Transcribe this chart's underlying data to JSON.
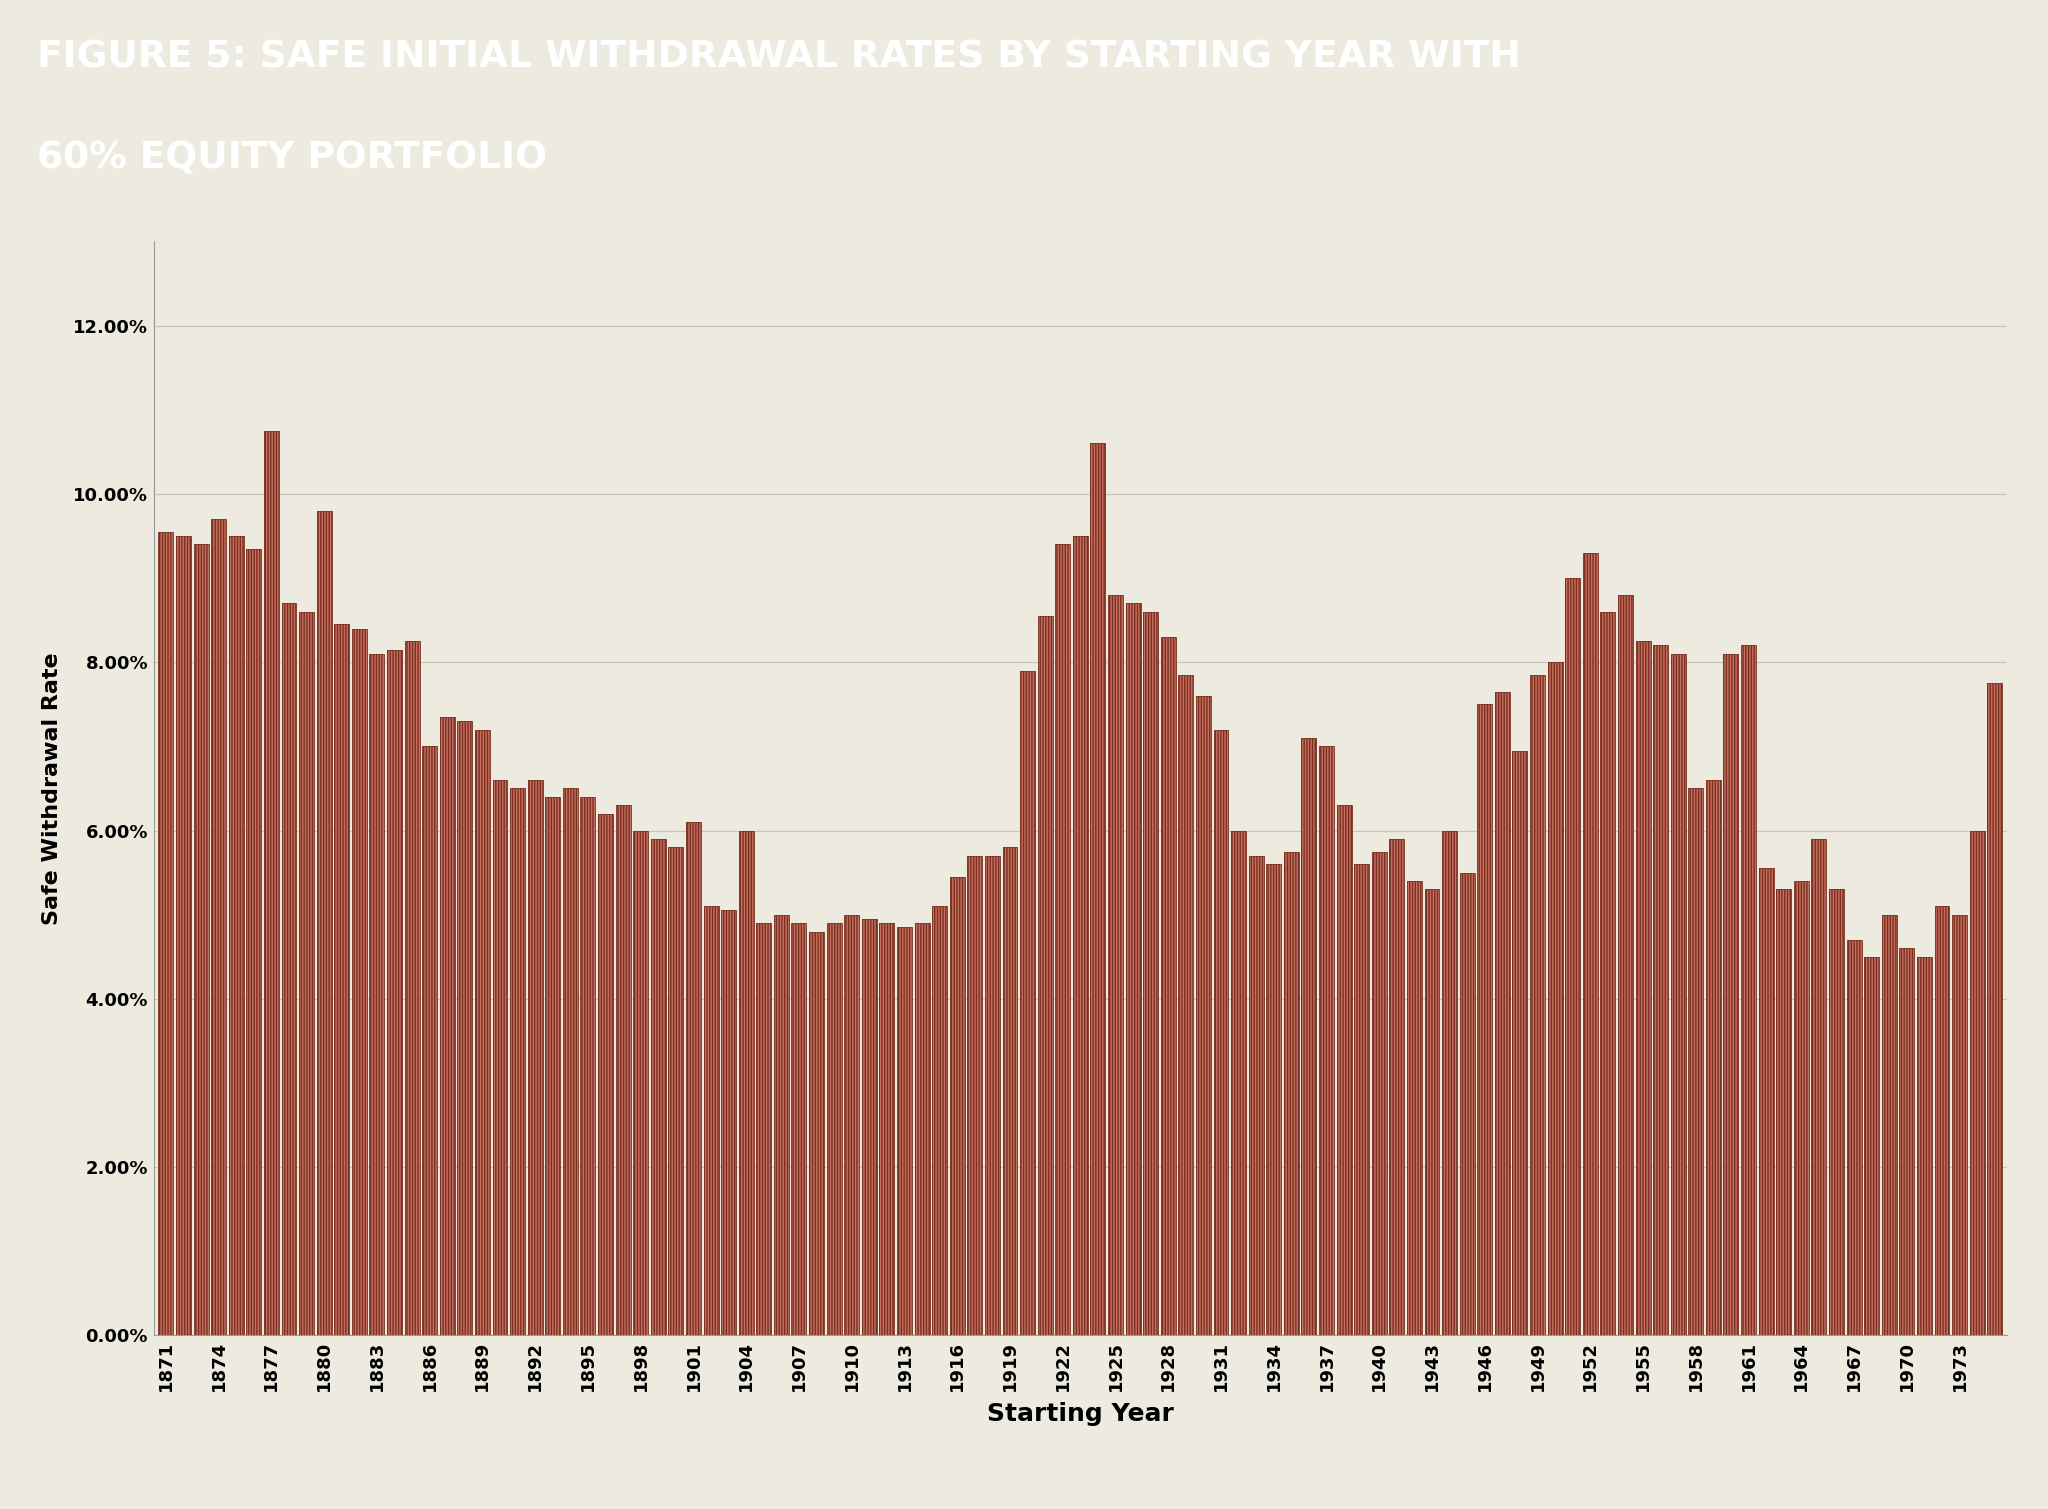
{
  "title_line1": "FIGURE 5: SAFE INITIAL WITHDRAWAL RATES BY STARTING YEAR WITH",
  "title_line2": "60% EQUITY PORTFOLIO",
  "xlabel": "Starting Year",
  "ylabel": "Safe Withdrawal Rate",
  "background_color": "#edeae0",
  "title_bg_color": "#111111",
  "title_text_color": "#ffffff",
  "bar_face_color": "#c87060",
  "bar_edge_color": "#7a3020",
  "bar_hatch_color": "#7a3020",
  "ylim": [
    0,
    0.13
  ],
  "yticks": [
    0.0,
    0.02,
    0.04,
    0.06,
    0.08,
    0.1,
    0.12
  ],
  "ytick_labels": [
    "0.00%",
    "2.00%",
    "4.00%",
    "6.00%",
    "8.00%",
    "10.00%",
    "12.00%"
  ],
  "years": [
    1871,
    1872,
    1873,
    1874,
    1875,
    1876,
    1877,
    1878,
    1879,
    1880,
    1881,
    1882,
    1883,
    1884,
    1885,
    1886,
    1887,
    1888,
    1889,
    1890,
    1891,
    1892,
    1893,
    1894,
    1895,
    1896,
    1897,
    1898,
    1899,
    1900,
    1901,
    1902,
    1903,
    1904,
    1905,
    1906,
    1907,
    1908,
    1909,
    1910,
    1911,
    1912,
    1913,
    1914,
    1915,
    1916,
    1917,
    1918,
    1919,
    1920,
    1921,
    1922,
    1923,
    1924,
    1925,
    1926,
    1927,
    1928,
    1929,
    1930,
    1931,
    1932,
    1933,
    1934,
    1935,
    1936,
    1937,
    1938,
    1939,
    1940,
    1941,
    1942,
    1943,
    1944,
    1945,
    1946,
    1947,
    1948,
    1949,
    1950,
    1951,
    1952,
    1953,
    1954,
    1955,
    1956,
    1957,
    1958,
    1959,
    1960,
    1961,
    1962,
    1963,
    1964,
    1965,
    1966,
    1967,
    1968,
    1969,
    1970,
    1971,
    1972,
    1973,
    1974,
    1975
  ],
  "values": [
    0.0955,
    0.095,
    0.094,
    0.097,
    0.095,
    0.0935,
    0.1075,
    0.087,
    0.086,
    0.098,
    0.0845,
    0.084,
    0.081,
    0.0815,
    0.0825,
    0.07,
    0.0735,
    0.073,
    0.072,
    0.066,
    0.065,
    0.066,
    0.064,
    0.065,
    0.064,
    0.062,
    0.063,
    0.06,
    0.059,
    0.058,
    0.061,
    0.051,
    0.0505,
    0.06,
    0.049,
    0.05,
    0.049,
    0.048,
    0.049,
    0.05,
    0.0495,
    0.049,
    0.0485,
    0.049,
    0.051,
    0.0545,
    0.057,
    0.057,
    0.058,
    0.079,
    0.0855,
    0.094,
    0.095,
    0.106,
    0.088,
    0.087,
    0.086,
    0.083,
    0.0785,
    0.076,
    0.072,
    0.06,
    0.057,
    0.056,
    0.0575,
    0.071,
    0.07,
    0.063,
    0.056,
    0.0575,
    0.059,
    0.054,
    0.053,
    0.06,
    0.055,
    0.075,
    0.0765,
    0.0695,
    0.0785,
    0.08,
    0.09,
    0.093,
    0.086,
    0.088,
    0.0825,
    0.082,
    0.081,
    0.065,
    0.066,
    0.081,
    0.082,
    0.0555,
    0.053,
    0.054,
    0.059,
    0.053,
    0.047,
    0.045,
    0.05,
    0.046,
    0.045,
    0.051,
    0.05,
    0.06,
    0.0775
  ],
  "xtick_years": [
    1871,
    1874,
    1877,
    1880,
    1883,
    1886,
    1889,
    1892,
    1895,
    1898,
    1901,
    1904,
    1907,
    1910,
    1913,
    1916,
    1919,
    1922,
    1925,
    1928,
    1931,
    1934,
    1937,
    1940,
    1943,
    1946,
    1949,
    1952,
    1955,
    1958,
    1961,
    1964,
    1967,
    1970,
    1973
  ]
}
